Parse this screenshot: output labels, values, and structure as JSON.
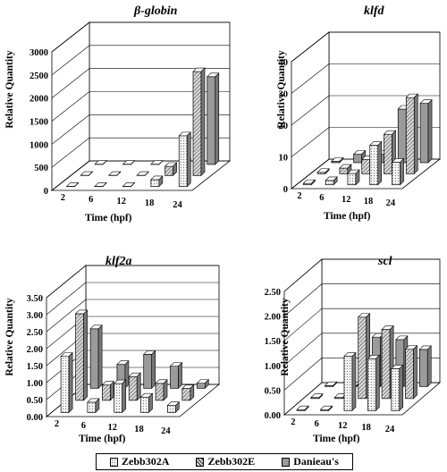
{
  "legend": [
    {
      "name": "Zebb302A",
      "pattern": "dots"
    },
    {
      "name": "Zebb302E",
      "pattern": "hatch"
    },
    {
      "name": "Danieau's",
      "pattern": "solid"
    }
  ],
  "colors": {
    "series_a": "#f2f2f2",
    "series_e": "#cfcfcf",
    "series_d": "#9a9a9a",
    "edge": "#000000"
  },
  "chart_data": [
    {
      "type": "bar",
      "title": "β-globin",
      "ylabel": "Relative Quantity",
      "xlabel": "Time (hpf)",
      "categories": [
        "2",
        "6",
        "12",
        "18",
        "24"
      ],
      "ylim": [
        0,
        3000
      ],
      "yticks": [
        "0",
        "500",
        "1000",
        "1500",
        "2000",
        "2500",
        "3000"
      ],
      "series": [
        {
          "name": "Zebb302A",
          "values": [
            5,
            5,
            5,
            150,
            1100
          ]
        },
        {
          "name": "Zebb302E",
          "values": [
            5,
            5,
            5,
            200,
            2250
          ]
        },
        {
          "name": "Danieau's",
          "values": [
            5,
            5,
            5,
            50,
            1900
          ]
        }
      ]
    },
    {
      "type": "bar",
      "title": "klfd",
      "ylabel": "Relative Quantity",
      "xlabel": "Time (hpf)",
      "categories": [
        "2",
        "6",
        "12",
        "18",
        "24"
      ],
      "ylim": [
        0,
        45
      ],
      "yticks": [
        "0",
        "10",
        "20",
        "30",
        "40"
      ],
      "series": [
        {
          "name": "Zebb302A",
          "values": [
            0.5,
            1.5,
            4,
            14,
            8
          ]
        },
        {
          "name": "Zebb302E",
          "values": [
            0.5,
            2,
            5,
            14,
            27
          ]
        },
        {
          "name": "Danieau's",
          "values": [
            0.5,
            3,
            3,
            19,
            21
          ]
        }
      ]
    },
    {
      "type": "bar",
      "title": "klf2a",
      "ylabel": "Relative Quantity",
      "xlabel": "Time (hpf)",
      "categories": [
        "2",
        "6",
        "12",
        "18",
        "24"
      ],
      "ylim": [
        0,
        3.5
      ],
      "yticks": [
        "0.00",
        "0.50",
        "1.00",
        "1.50",
        "2.00",
        "2.50",
        "3.00",
        "3.50"
      ],
      "series": [
        {
          "name": "Zebb302A",
          "values": [
            1.65,
            0.3,
            0.85,
            0.45,
            0.2
          ]
        },
        {
          "name": "Zebb302E",
          "values": [
            2.55,
            0.45,
            0.7,
            0.5,
            0.35
          ]
        },
        {
          "name": "Danieau's",
          "values": [
            1.75,
            0.7,
            1.0,
            0.65,
            0.15
          ]
        }
      ]
    },
    {
      "type": "bar",
      "title": "scl",
      "ylabel": "Relative Quantity",
      "xlabel": "Time (hpf)",
      "categories": [
        "2",
        "6",
        "12",
        "18",
        "24"
      ],
      "ylim": [
        0,
        2.5
      ],
      "yticks": [
        "0.00",
        "0.50",
        "1.00",
        "1.50",
        "2.00",
        "2.50"
      ],
      "series": [
        {
          "name": "Zebb302A",
          "values": [
            0.02,
            0.02,
            1.1,
            1.05,
            0.85
          ]
        },
        {
          "name": "Zebb302E",
          "values": [
            0.02,
            0.02,
            1.65,
            1.4,
            1.0
          ]
        },
        {
          "name": "Danieau's",
          "values": [
            0.02,
            0.02,
            1.0,
            0.95,
            0.75
          ]
        }
      ]
    }
  ]
}
